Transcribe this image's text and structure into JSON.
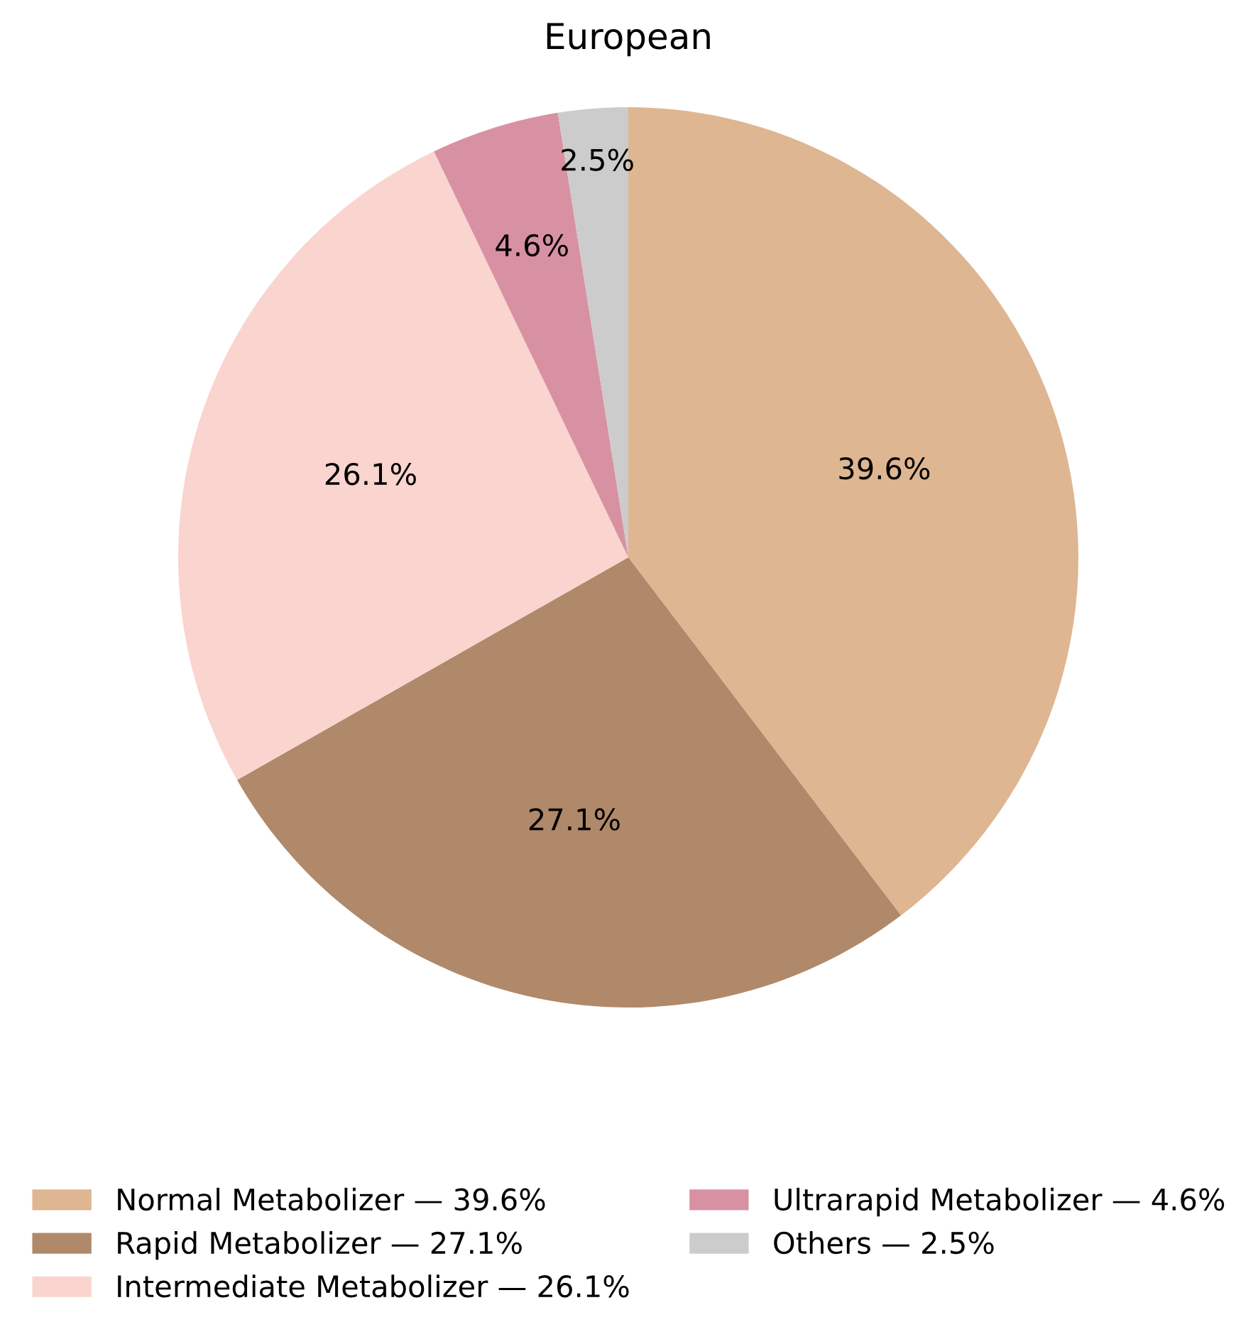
{
  "chart_data": {
    "type": "pie",
    "title": "European",
    "categories": [
      "Normal Metabolizer — 39.6%",
      "Rapid Metabolizer — 27.1%",
      "Intermediate Metabolizer — 26.1%",
      "Ultrarapid Metabolizer — 4.6%",
      "Others — 2.5%"
    ],
    "values": [
      39.6,
      27.1,
      26.1,
      4.6,
      2.5
    ],
    "colors": [
      "#deb692",
      "#b0896a",
      "#fad4ce",
      "#d891a3",
      "#cccccc"
    ],
    "value_labels": [
      "39.6%",
      "27.1%",
      "26.1%",
      "4.6%",
      "2.5%"
    ],
    "legend": "bottom"
  }
}
